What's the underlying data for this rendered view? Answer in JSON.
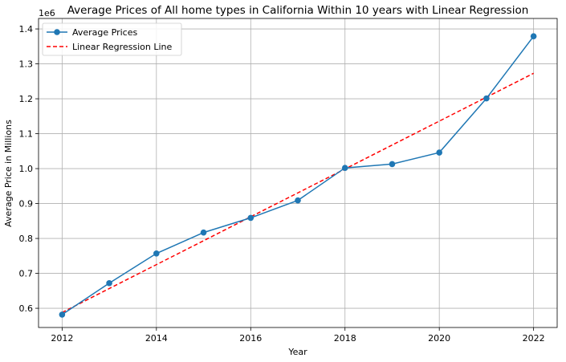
{
  "chart_data": {
    "type": "line",
    "title": "Average Prices of All home types in California Within 10 years with Linear Regression",
    "xlabel": "Year",
    "ylabel": "Average Price in Millions",
    "y_offset_label": "1e6",
    "xlim": [
      2011.5,
      2022.5
    ],
    "ylim": [
      0.545,
      1.43
    ],
    "x_ticks": [
      2012,
      2014,
      2016,
      2018,
      2020,
      2022
    ],
    "y_ticks": [
      0.6,
      0.7,
      0.8,
      0.9,
      1.0,
      1.1,
      1.2,
      1.3,
      1.4
    ],
    "x_tick_labels": [
      "2012",
      "2014",
      "2016",
      "2018",
      "2020",
      "2022"
    ],
    "y_tick_labels": [
      "0.6",
      "0.7",
      "0.8",
      "0.9",
      "1.0",
      "1.1",
      "1.2",
      "1.3",
      "1.4"
    ],
    "grid": true,
    "legend_position": "upper-left",
    "series": [
      {
        "name": "Average Prices",
        "style": "solid-with-markers",
        "color": "#1f77b4",
        "x": [
          2012,
          2013,
          2014,
          2015,
          2016,
          2017,
          2018,
          2019,
          2020,
          2021,
          2022
        ],
        "values": [
          0.582,
          0.672,
          0.757,
          0.817,
          0.859,
          0.909,
          1.002,
          1.013,
          1.046,
          1.201,
          1.379
        ]
      },
      {
        "name": "Linear Regression Line",
        "style": "dashed",
        "color": "#ff0000",
        "x": [
          2012,
          2022
        ],
        "values": [
          0.588,
          1.273
        ]
      }
    ]
  }
}
